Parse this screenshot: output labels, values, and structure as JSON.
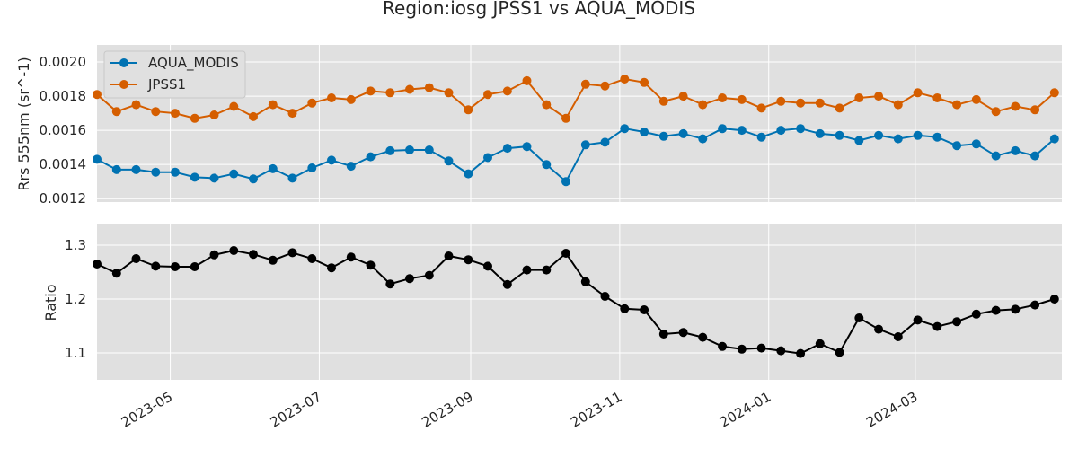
{
  "chart_data": {
    "title": "Region:iosg JPSS1 vs AQUA_MODIS",
    "type": "line",
    "x_axis": {
      "type": "date",
      "range": [
        "2023-04-01",
        "2024-04-30"
      ],
      "ticks": [
        "2023-05-01",
        "2023-07-01",
        "2023-09-01",
        "2023-11-01",
        "2024-01-01",
        "2024-03-01"
      ],
      "tick_labels": [
        "2023-05",
        "2023-07",
        "2023-09",
        "2023-11",
        "2024-01",
        "2024-03"
      ]
    },
    "x": [
      "2023-04-01",
      "2023-04-09",
      "2023-04-17",
      "2023-04-25",
      "2023-05-03",
      "2023-05-11",
      "2023-05-19",
      "2023-05-27",
      "2023-06-04",
      "2023-06-12",
      "2023-06-20",
      "2023-06-28",
      "2023-07-06",
      "2023-07-14",
      "2023-07-22",
      "2023-07-30",
      "2023-08-07",
      "2023-08-15",
      "2023-08-23",
      "2023-08-31",
      "2023-09-08",
      "2023-09-16",
      "2023-09-24",
      "2023-10-02",
      "2023-10-10",
      "2023-10-18",
      "2023-10-26",
      "2023-11-03",
      "2023-11-11",
      "2023-11-19",
      "2023-11-27",
      "2023-12-05",
      "2023-12-13",
      "2023-12-21",
      "2023-12-29",
      "2024-01-06",
      "2024-01-14",
      "2024-01-22",
      "2024-01-30",
      "2024-02-07",
      "2024-02-15",
      "2024-02-23",
      "2024-03-02",
      "2024-03-10",
      "2024-03-18",
      "2024-03-26",
      "2024-04-03",
      "2024-04-11",
      "2024-04-19",
      "2024-04-27"
    ],
    "top_panel": {
      "ylabel": "Rrs 555nm (sr^-1)",
      "ylim": [
        0.00118,
        0.0021
      ],
      "yticks": [
        0.0012,
        0.0014,
        0.0016,
        0.0018,
        0.002
      ],
      "ytick_labels": [
        "0.0012",
        "0.0014",
        "0.0016",
        "0.0018",
        "0.0020"
      ],
      "legend_position": "top-left",
      "series": [
        {
          "name": "AQUA_MODIS",
          "color": "#0072b2",
          "values": [
            0.00143,
            0.00137,
            0.00137,
            0.001355,
            0.001355,
            0.001325,
            0.00132,
            0.001345,
            0.001315,
            0.001375,
            0.00132,
            0.00138,
            0.001425,
            0.00139,
            0.001445,
            0.00148,
            0.001485,
            0.001485,
            0.00142,
            0.001345,
            0.00144,
            0.001495,
            0.001505,
            0.0014,
            0.0013,
            0.001515,
            0.00153,
            0.00161,
            0.00159,
            0.001565,
            0.00158,
            0.00155,
            0.00161,
            0.0016,
            0.00156,
            0.0016,
            0.00161,
            0.00158,
            0.00157,
            0.00154,
            0.00157,
            0.00155,
            0.00157,
            0.00156,
            0.00151,
            0.00152,
            0.00145,
            0.00148,
            0.00145,
            0.00155
          ]
        },
        {
          "name": "JPSS1",
          "color": "#d55e00",
          "values": [
            0.00181,
            0.00171,
            0.00175,
            0.00171,
            0.0017,
            0.00167,
            0.00169,
            0.00174,
            0.00168,
            0.00175,
            0.0017,
            0.00176,
            0.00179,
            0.00178,
            0.00183,
            0.00182,
            0.00184,
            0.00185,
            0.00182,
            0.00172,
            0.00181,
            0.00183,
            0.00189,
            0.00175,
            0.00167,
            0.00187,
            0.00186,
            0.0019,
            0.00188,
            0.00177,
            0.0018,
            0.00175,
            0.00179,
            0.00178,
            0.00173,
            0.00177,
            0.00176,
            0.00176,
            0.00173,
            0.00179,
            0.0018,
            0.00175,
            0.00182,
            0.00179,
            0.00175,
            0.00178,
            0.00171,
            0.00174,
            0.00172,
            0.00182
          ]
        }
      ]
    },
    "bottom_panel": {
      "ylabel": "Ratio",
      "ylim": [
        1.05,
        1.34
      ],
      "yticks": [
        1.1,
        1.2,
        1.3
      ],
      "ytick_labels": [
        "1.1",
        "1.2",
        "1.3"
      ],
      "series": [
        {
          "color": "#000000",
          "values": [
            1.265,
            1.248,
            1.275,
            1.261,
            1.26,
            1.26,
            1.282,
            1.29,
            1.283,
            1.272,
            1.286,
            1.275,
            1.258,
            1.278,
            1.263,
            1.228,
            1.238,
            1.244,
            1.28,
            1.273,
            1.261,
            1.227,
            1.254,
            1.254,
            1.285,
            1.232,
            1.205,
            1.182,
            1.18,
            1.135,
            1.138,
            1.129,
            1.112,
            1.107,
            1.109,
            1.104,
            1.099,
            1.117,
            1.101,
            1.165,
            1.144,
            1.13,
            1.161,
            1.149,
            1.158,
            1.172,
            1.179,
            1.181,
            1.189,
            1.2
          ]
        }
      ]
    },
    "grid": true
  }
}
